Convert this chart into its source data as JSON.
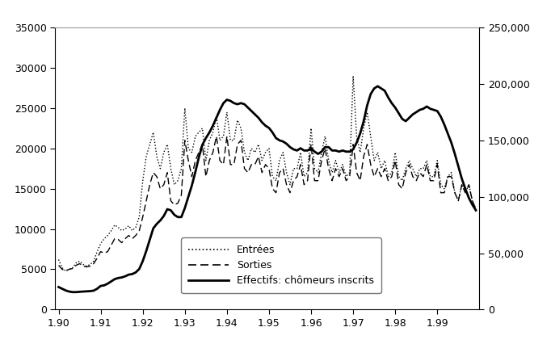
{
  "xlabel_ticks": [
    "1.90",
    "1.91",
    "1.92",
    "1.93",
    "1.94",
    "1.95",
    "1.96",
    "1.97",
    "1.98",
    "1.99"
  ],
  "xtick_positions": [
    0,
    12,
    24,
    36,
    48,
    60,
    72,
    84,
    96,
    108
  ],
  "ylim_left": [
    0,
    35000
  ],
  "ylim_right": [
    0,
    250000
  ],
  "yticks_left": [
    0,
    5000,
    10000,
    15000,
    20000,
    25000,
    30000,
    35000
  ],
  "yticks_right": [
    0,
    50000,
    100000,
    150000,
    200000,
    250000
  ],
  "legend_labels": [
    "Entrées",
    "Sorties",
    "Effectifs: chômeurs inscrits"
  ],
  "background_color": "#ffffff",
  "line_color": "#000000",
  "entrees": [
    6200,
    5200,
    4800,
    5000,
    5200,
    5800,
    6000,
    5600,
    5400,
    5600,
    6000,
    7200,
    8200,
    8800,
    9200,
    9800,
    10500,
    10200,
    9800,
    10000,
    10400,
    9800,
    10200,
    11500,
    16000,
    19000,
    20500,
    22000,
    19000,
    17500,
    19500,
    20500,
    17500,
    15500,
    16000,
    17500,
    25000,
    20000,
    19500,
    21500,
    22000,
    22500,
    18500,
    21000,
    22000,
    24000,
    21000,
    21500,
    24500,
    21000,
    21000,
    23500,
    22500,
    19500,
    18500,
    20000,
    19500,
    20500,
    18500,
    19500,
    20000,
    16500,
    16000,
    18500,
    19500,
    17000,
    15500,
    17500,
    17500,
    19500,
    16500,
    17000,
    22500,
    17500,
    17000,
    19500,
    21500,
    18500,
    17000,
    18500,
    17000,
    18000,
    16500,
    17000,
    29000,
    21500,
    19500,
    22500,
    24500,
    21500,
    18500,
    19500,
    17500,
    18500,
    16500,
    17000,
    19500,
    16500,
    16000,
    17500,
    18500,
    17500,
    16500,
    17500,
    17500,
    18500,
    16500,
    16500,
    18500,
    15500,
    15000,
    16500,
    17000,
    14500,
    13500,
    15500,
    14500,
    15500,
    13500,
    12500
  ],
  "sorties": [
    5500,
    5000,
    4800,
    5000,
    5100,
    5500,
    5700,
    5400,
    5300,
    5400,
    5700,
    6400,
    7200,
    7000,
    7200,
    8000,
    8800,
    8700,
    8300,
    8800,
    9200,
    8800,
    9200,
    9800,
    11500,
    13500,
    15500,
    17000,
    16500,
    15000,
    15500,
    17000,
    13500,
    13000,
    13200,
    14200,
    21000,
    18500,
    16500,
    18500,
    19500,
    20500,
    16500,
    18500,
    19500,
    21500,
    18500,
    18000,
    21500,
    18000,
    18000,
    20500,
    21000,
    17500,
    17000,
    18000,
    18000,
    19000,
    17000,
    18000,
    17500,
    15000,
    14500,
    17000,
    17500,
    15500,
    14500,
    16000,
    16500,
    18000,
    15500,
    16000,
    20500,
    16000,
    16000,
    18500,
    20000,
    17500,
    16000,
    17500,
    16500,
    17500,
    16000,
    16500,
    20500,
    17000,
    16000,
    19000,
    20500,
    18000,
    16500,
    17500,
    16500,
    17500,
    16000,
    16500,
    18500,
    15500,
    15000,
    17000,
    18000,
    16500,
    16000,
    17000,
    16500,
    18000,
    16000,
    16000,
    18000,
    14500,
    14500,
    16500,
    16500,
    14500,
    13500,
    15500,
    14500,
    15500,
    13500,
    12500
  ],
  "effectifs": [
    20000,
    18500,
    17000,
    16000,
    15500,
    15500,
    15800,
    16000,
    16200,
    16400,
    16800,
    18500,
    21000,
    21500,
    23000,
    25000,
    27000,
    28000,
    28500,
    29500,
    31000,
    31500,
    33000,
    36000,
    43000,
    52000,
    62000,
    72000,
    76000,
    79000,
    83000,
    89000,
    88000,
    84000,
    82000,
    82000,
    90000,
    100000,
    110000,
    122000,
    135000,
    146000,
    152000,
    157000,
    163000,
    170000,
    177000,
    183000,
    186000,
    185000,
    183000,
    182000,
    183000,
    182000,
    179000,
    176000,
    173000,
    170000,
    166000,
    163000,
    161000,
    157000,
    152000,
    150000,
    149000,
    147000,
    144000,
    142000,
    141000,
    143000,
    141000,
    141000,
    143000,
    140000,
    138000,
    140000,
    144000,
    144000,
    141000,
    141000,
    140000,
    141000,
    140000,
    140000,
    142000,
    148000,
    156000,
    167000,
    181000,
    191000,
    196000,
    198000,
    196000,
    194000,
    188000,
    183000,
    179000,
    174000,
    169000,
    167000,
    170000,
    173000,
    175000,
    177000,
    178000,
    180000,
    178000,
    177000,
    176000,
    171000,
    164000,
    156000,
    148000,
    138000,
    127000,
    116000,
    107000,
    99000,
    93000,
    88000
  ]
}
